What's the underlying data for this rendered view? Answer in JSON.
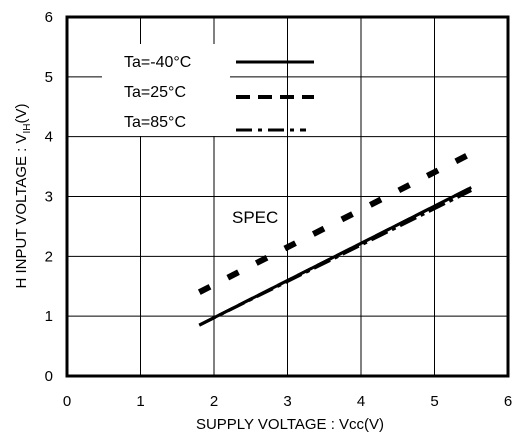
{
  "chart_data": {
    "type": "line",
    "xlabel": "SUPPLY VOLTAGE : Vcc(V)",
    "ylabel_main": "H INPUT VOLTAGE : V",
    "ylabel_sub": "IH",
    "ylabel_unit": "(V)",
    "xlim": [
      0,
      6
    ],
    "ylim": [
      0,
      6
    ],
    "x_ticks": [
      "0",
      "1",
      "2",
      "3",
      "4",
      "5",
      "6"
    ],
    "y_ticks": [
      "0",
      "1",
      "2",
      "3",
      "4",
      "5",
      "6"
    ],
    "grid": true,
    "legend_position": "top-left",
    "annotation": "SPEC",
    "series": [
      {
        "name": "Ta=-40°C",
        "style": "solid",
        "color": "#000000",
        "x": [
          1.8,
          5.5
        ],
        "y": [
          0.85,
          3.15
        ]
      },
      {
        "name": "Ta=25°C",
        "style": "dashed",
        "color": "#000000",
        "x": [
          1.8,
          5.5
        ],
        "y": [
          0.85,
          3.15
        ]
      },
      {
        "name": "Ta=85°C",
        "style": "dash-dot",
        "color": "#000000",
        "x": [
          1.8,
          5.5
        ],
        "y": [
          0.85,
          3.1
        ]
      },
      {
        "name": "SPEC",
        "style": "dashed-bold",
        "color": "#000000",
        "x": [
          1.8,
          5.5
        ],
        "y": [
          1.4,
          3.72
        ]
      }
    ]
  }
}
